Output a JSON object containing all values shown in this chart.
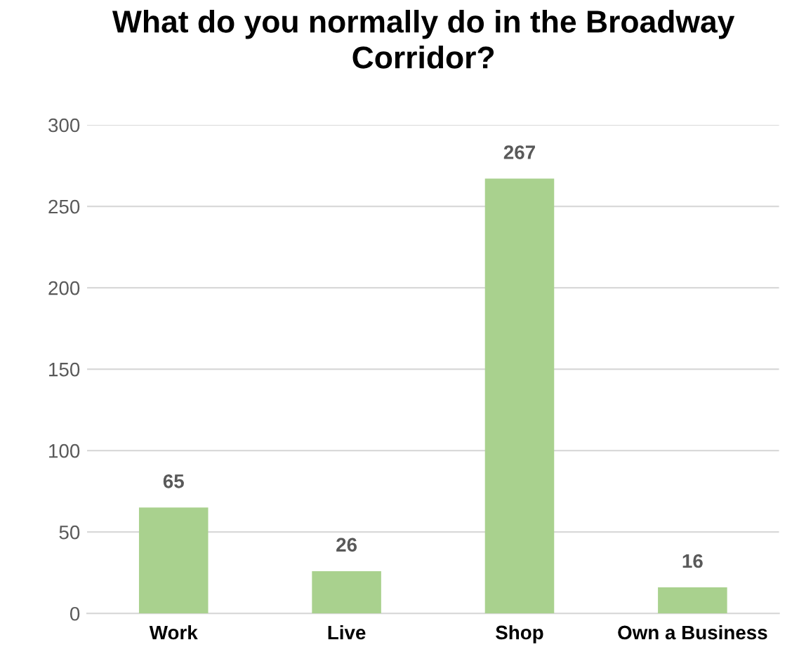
{
  "chart_data": {
    "type": "bar",
    "title": "What do you normally do in the Broadway Corridor?",
    "categories": [
      "Work",
      "Live",
      "Shop",
      "Own a Business"
    ],
    "values": [
      65,
      26,
      267,
      16
    ],
    "color": "#a9d18e",
    "ylim": [
      0,
      300
    ],
    "yticks": [
      0,
      50,
      100,
      150,
      200,
      250,
      300
    ],
    "grid": "y",
    "data_labels": true
  }
}
